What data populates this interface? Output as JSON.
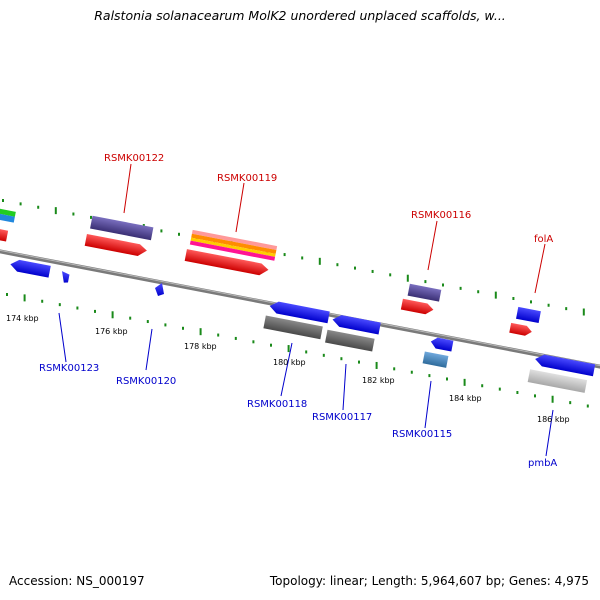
{
  "title": "Ralstonia solanacearum MolK2 unordered unplaced scaffolds, w...",
  "footer": {
    "accession": "Accession: NS_000197",
    "summary": "Topology: linear; Length: 5,964,607 bp; Genes: 4,975"
  },
  "colors": {
    "backbone": "#808080",
    "tick": "#1a8a1a",
    "label_above": "#cc0000",
    "label_below": "#0000cc",
    "gene_red": "#ee0000",
    "gene_blue": "#0000ee",
    "gene_purple": "#4a3f8c",
    "gene_gray": "#666666"
  },
  "scale": {
    "tick_labels": [
      "174 kbp",
      "176 kbp",
      "178 kbp",
      "180 kbp",
      "182 kbp",
      "184 kbp",
      "186 kbp"
    ]
  },
  "gene_labels_above": [
    "RSMK00122",
    "RSMK00119",
    "RSMK00116",
    "folA"
  ],
  "gene_labels_below": [
    "RSMK00123",
    "RSMK00120",
    "RSMK00118",
    "RSMK00117",
    "RSMK00115",
    "pmbA"
  ]
}
